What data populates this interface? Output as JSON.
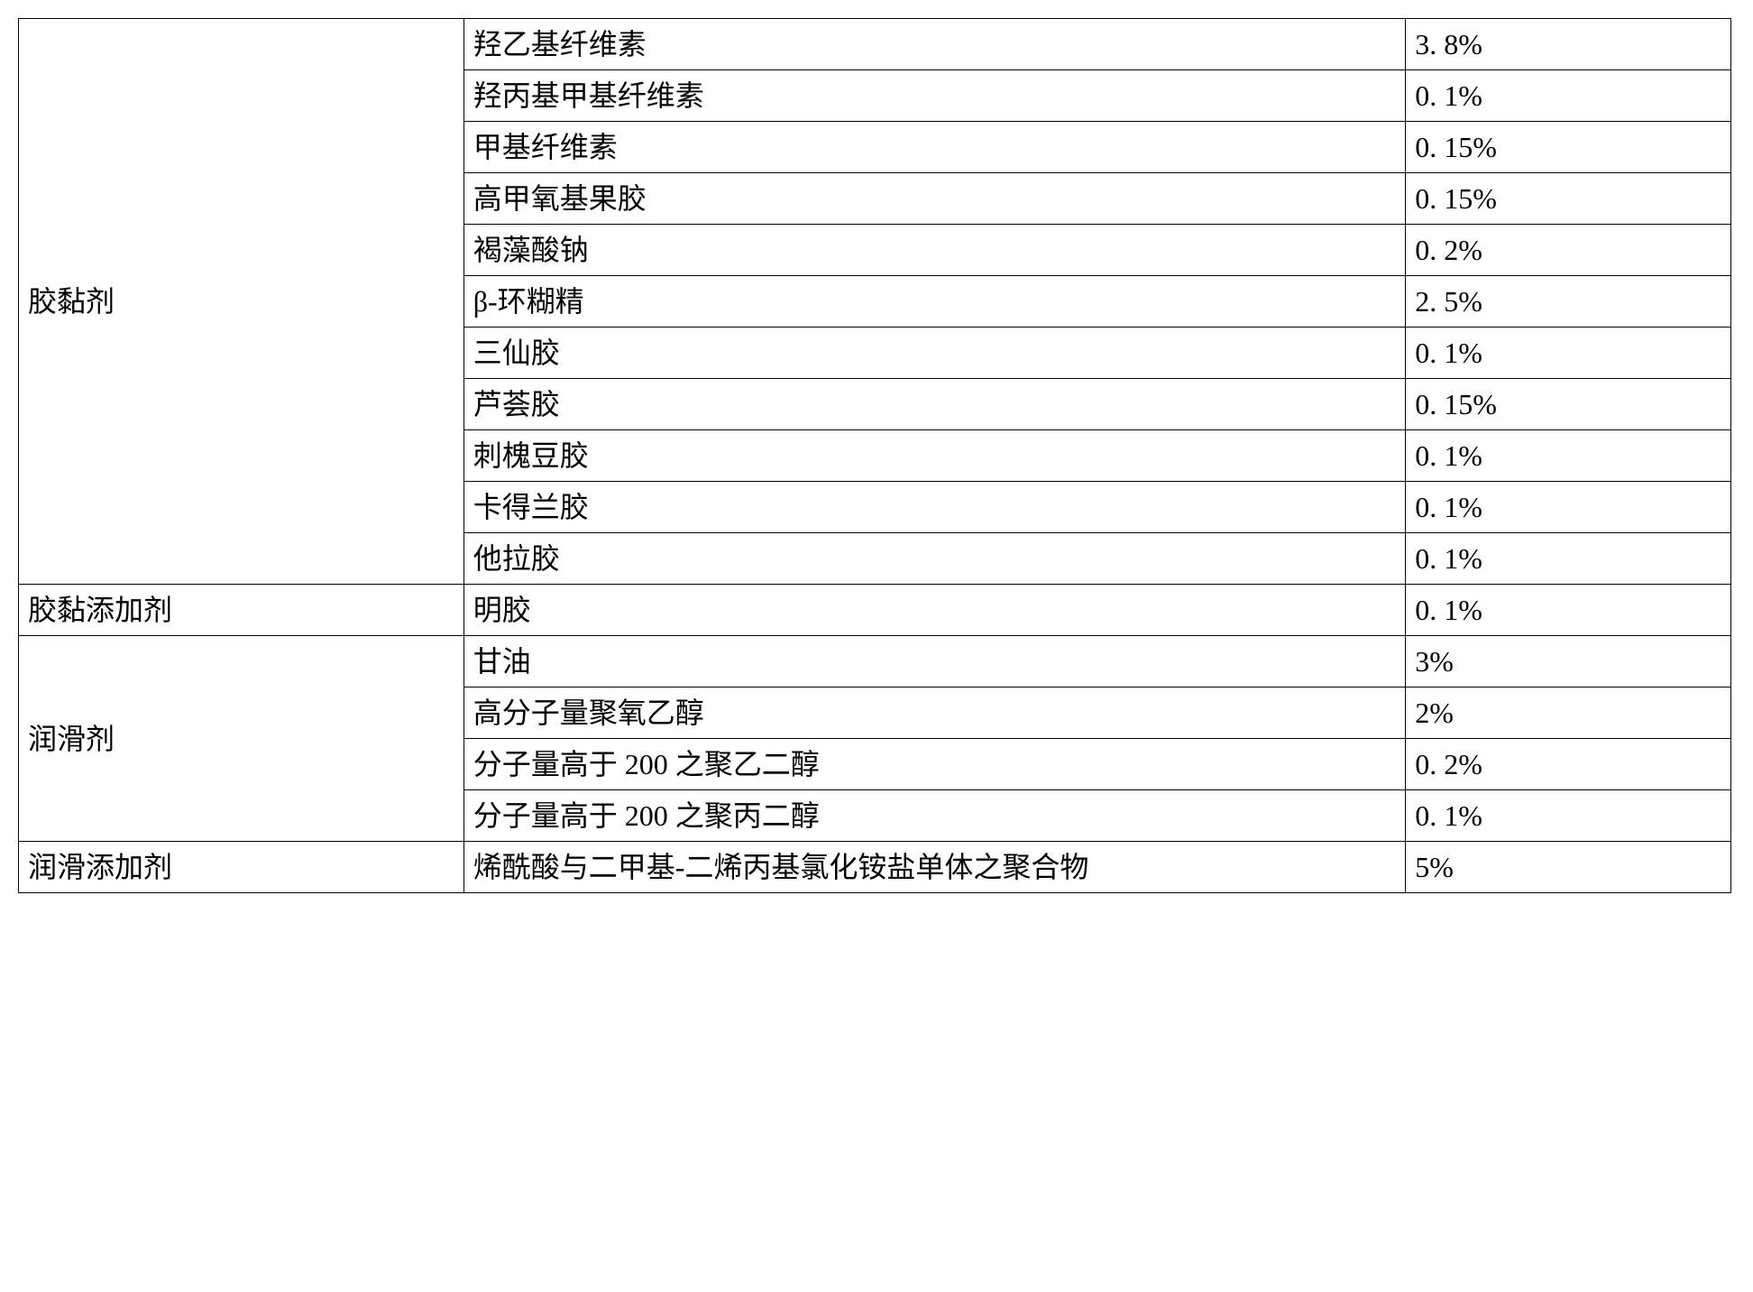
{
  "table": {
    "columns": [
      "category",
      "ingredient",
      "percentage"
    ],
    "column_widths": [
      "26%",
      "55%",
      "19%"
    ],
    "border_color": "#000000",
    "background_color": "#ffffff",
    "font_size": 32,
    "font_family": "SimSun",
    "groups": [
      {
        "category": "胶黏剂",
        "rowspan": 11,
        "rows": [
          {
            "ingredient": "羟乙基纤维素",
            "percentage": "3. 8%"
          },
          {
            "ingredient": "羟丙基甲基纤维素",
            "percentage": "0. 1%"
          },
          {
            "ingredient": "甲基纤维素",
            "percentage": "0. 15%"
          },
          {
            "ingredient": "高甲氧基果胶",
            "percentage": "0. 15%"
          },
          {
            "ingredient": "褐藻酸钠",
            "percentage": "0. 2%"
          },
          {
            "ingredient": "β-环糊精",
            "percentage": "2. 5%"
          },
          {
            "ingredient": "三仙胶",
            "percentage": "0. 1%"
          },
          {
            "ingredient": "芦荟胶",
            "percentage": "0. 15%"
          },
          {
            "ingredient": "刺槐豆胶",
            "percentage": "0. 1%"
          },
          {
            "ingredient": "卡得兰胶",
            "percentage": "0. 1%"
          },
          {
            "ingredient": "他拉胶",
            "percentage": "0. 1%"
          }
        ]
      },
      {
        "category": "胶黏添加剂",
        "rowspan": 1,
        "rows": [
          {
            "ingredient": "明胶",
            "percentage": "0. 1%"
          }
        ]
      },
      {
        "category": "润滑剂",
        "rowspan": 4,
        "rows": [
          {
            "ingredient": "甘油",
            "percentage": "3%"
          },
          {
            "ingredient": "高分子量聚氧乙醇",
            "percentage": "2%"
          },
          {
            "ingredient": "分子量高于 200 之聚乙二醇",
            "percentage": "0. 2%"
          },
          {
            "ingredient": "分子量高于 200 之聚丙二醇",
            "percentage": "0. 1%"
          }
        ]
      },
      {
        "category": "润滑添加剂",
        "rowspan": 1,
        "rows": [
          {
            "ingredient": "烯酰酸与二甲基-二烯丙基氯化铵盐单体之聚合物",
            "percentage": "5%"
          }
        ]
      }
    ]
  }
}
